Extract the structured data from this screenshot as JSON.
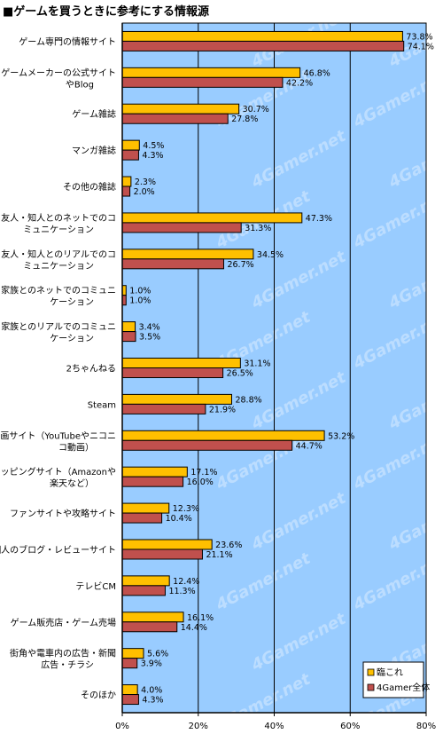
{
  "chart_data": {
    "type": "bar",
    "orientation": "horizontal",
    "title": "■ゲームを買うときに参考にする情報源",
    "categories": [
      [
        "ゲーム専門の情報サイト"
      ],
      [
        "ゲームメーカーの公式サイト",
        "やBlog"
      ],
      [
        "ゲーム雑誌"
      ],
      [
        "マンガ雑誌"
      ],
      [
        "その他の雑誌"
      ],
      [
        "友人・知人とのネットでのコ",
        "ミュニケーション"
      ],
      [
        "友人・知人とのリアルでのコ",
        "ミュニケーション"
      ],
      [
        "家族とのネットでのコミュニ",
        "ケーション"
      ],
      [
        "家族とのリアルでのコミュニ",
        "ケーション"
      ],
      [
        "2ちゃんねる"
      ],
      [
        "Steam"
      ],
      [
        "動画サイト（YouTubeやニコニ",
        "コ動画）"
      ],
      [
        "ショッピングサイト（Amazonや",
        "楽天など）"
      ],
      [
        "ファンサイトや攻略サイト"
      ],
      [
        "個人のブログ・レビューサイト"
      ],
      [
        "テレビCM"
      ],
      [
        "ゲーム販売店・ゲーム売場"
      ],
      [
        "街角や電車内の広告・新聞",
        "広告・チラシ"
      ],
      [
        "そのほか"
      ]
    ],
    "series": [
      {
        "name": "臨これ",
        "color": "#ffc000",
        "values": [
          73.8,
          46.8,
          30.7,
          4.5,
          2.3,
          47.3,
          34.5,
          1.0,
          3.4,
          31.1,
          28.8,
          53.2,
          17.1,
          12.3,
          23.6,
          12.4,
          16.1,
          5.6,
          4.0
        ],
        "labels": [
          "73.8%",
          "46.8%",
          "30.7%",
          "4.5%",
          "2.3%",
          "47.3%",
          "34.5%",
          "1.0%",
          "3.4%",
          "31.1%",
          "28.8%",
          "53.2%",
          "17.1%",
          "12.3%",
          "23.6%",
          "12.4%",
          "16.1%",
          "5.6%",
          "4.0%"
        ]
      },
      {
        "name": "4Gamer全体",
        "color": "#c0504d",
        "values": [
          74.1,
          42.2,
          27.8,
          4.3,
          2.0,
          31.3,
          26.7,
          1.0,
          3.5,
          26.5,
          21.9,
          44.7,
          16.0,
          10.4,
          21.1,
          11.3,
          14.4,
          3.9,
          4.3
        ],
        "labels": [
          "74.1%",
          "42.2%",
          "27.8%",
          "4.3%",
          "2.0%",
          "31.3%",
          "26.7%",
          "1.0%",
          "3.5%",
          "26.5%",
          "21.9%",
          "44.7%",
          "16.0%",
          "10.4%",
          "21.1%",
          "11.3%",
          "14.4%",
          "3.9%",
          "4.3%"
        ]
      }
    ],
    "xlim": [
      0,
      80
    ],
    "xticks": [
      "0%",
      "20%",
      "40%",
      "60%",
      "80%"
    ],
    "grid": true,
    "legend_placement": "bottom-right",
    "plot_background": "#99ccff",
    "watermark": "4Gamer.net"
  }
}
